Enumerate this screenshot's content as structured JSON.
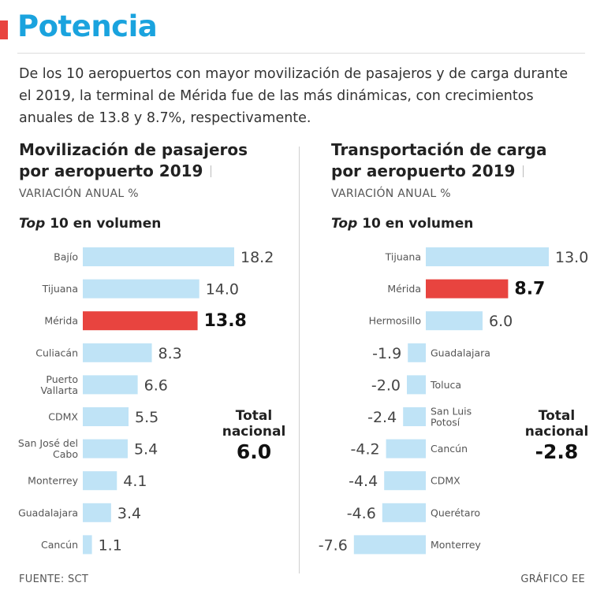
{
  "title": "Potencia",
  "intro": "De los 10 aeropuertos con mayor movilización de pasajeros y de carga durante el 2019, la terminal de Mérida fue de las más dinámicas, con crecimientos anuales de 13.8 y 8.7%, respectivamente.",
  "colors": {
    "accent": "#e8443f",
    "title": "#1aa3de",
    "bar": "#bfe3f6",
    "highlight": "#e8443f"
  },
  "chart_data": [
    {
      "type": "bar",
      "orientation": "horizontal",
      "title": "Movilización de pasajeros por aeropuerto 2019",
      "title_line1": "Movilización de pasajeros",
      "title_line2": "por aeropuerto 2019",
      "subtitle": "VARIACIÓN ANUAL %",
      "top_prefix": "Top",
      "top_rest": "10 en volumen",
      "categories": [
        "Bajío",
        "Tijuana",
        "Mérida",
        "Culiacán",
        "Puerto Vallarta",
        "CDMX",
        "San José del Cabo",
        "Monterrey",
        "Guadalajara",
        "Cancún"
      ],
      "category_lines": [
        [
          "Bajío"
        ],
        [
          "Tijuana"
        ],
        [
          "Mérida"
        ],
        [
          "Culiacán"
        ],
        [
          "Puerto",
          "Vallarta"
        ],
        [
          "CDMX"
        ],
        [
          "San José del",
          "Cabo"
        ],
        [
          "Monterrey"
        ],
        [
          "Guadalajara"
        ],
        [
          "Cancún"
        ]
      ],
      "values": [
        18.2,
        14.0,
        13.8,
        8.3,
        6.6,
        5.5,
        5.4,
        4.1,
        3.4,
        1.1
      ],
      "value_labels": [
        "18.2",
        "14.0",
        "13.8",
        "8.3",
        "6.6",
        "5.5",
        "5.4",
        "4.1",
        "3.4",
        "1.1"
      ],
      "highlight": "Mérida",
      "total_label_1": "Total",
      "total_label_2": "nacional",
      "total_value": "6.0"
    },
    {
      "type": "bar",
      "orientation": "horizontal",
      "title": "Transportación de carga por aeropuerto 2019",
      "title_line1": "Transportación de carga",
      "title_line2": "por aeropuerto 2019",
      "subtitle": "VARIACIÓN ANUAL %",
      "top_prefix": "Top",
      "top_rest": "10 en volumen",
      "categories": [
        "Tijuana",
        "Mérida",
        "Hermosillo",
        "Guadalajara",
        "Toluca",
        "San Luis Potosí",
        "Cancún",
        "CDMX",
        "Querétaro",
        "Monterrey"
      ],
      "category_lines": [
        [
          "Tijuana"
        ],
        [
          "Mérida"
        ],
        [
          "Hermosillo"
        ],
        [
          "Guadalajara"
        ],
        [
          "Toluca"
        ],
        [
          "San Luis",
          "Potosí"
        ],
        [
          "Cancún"
        ],
        [
          "CDMX"
        ],
        [
          "Querétaro"
        ],
        [
          "Monterrey"
        ]
      ],
      "values": [
        13.0,
        8.7,
        6.0,
        -1.9,
        -2.0,
        -2.4,
        -4.2,
        -4.4,
        -4.6,
        -7.6
      ],
      "value_labels": [
        "13.0",
        "8.7",
        "6.0",
        "-1.9",
        "-2.0",
        "-2.4",
        "-4.2",
        "-4.4",
        "-4.6",
        "-7.6"
      ],
      "highlight": "Mérida",
      "total_label_1": "Total",
      "total_label_2": "nacional",
      "total_value": "-2.8"
    }
  ],
  "source": "FUENTE: SCT",
  "credit": "GRÁFICO EE"
}
